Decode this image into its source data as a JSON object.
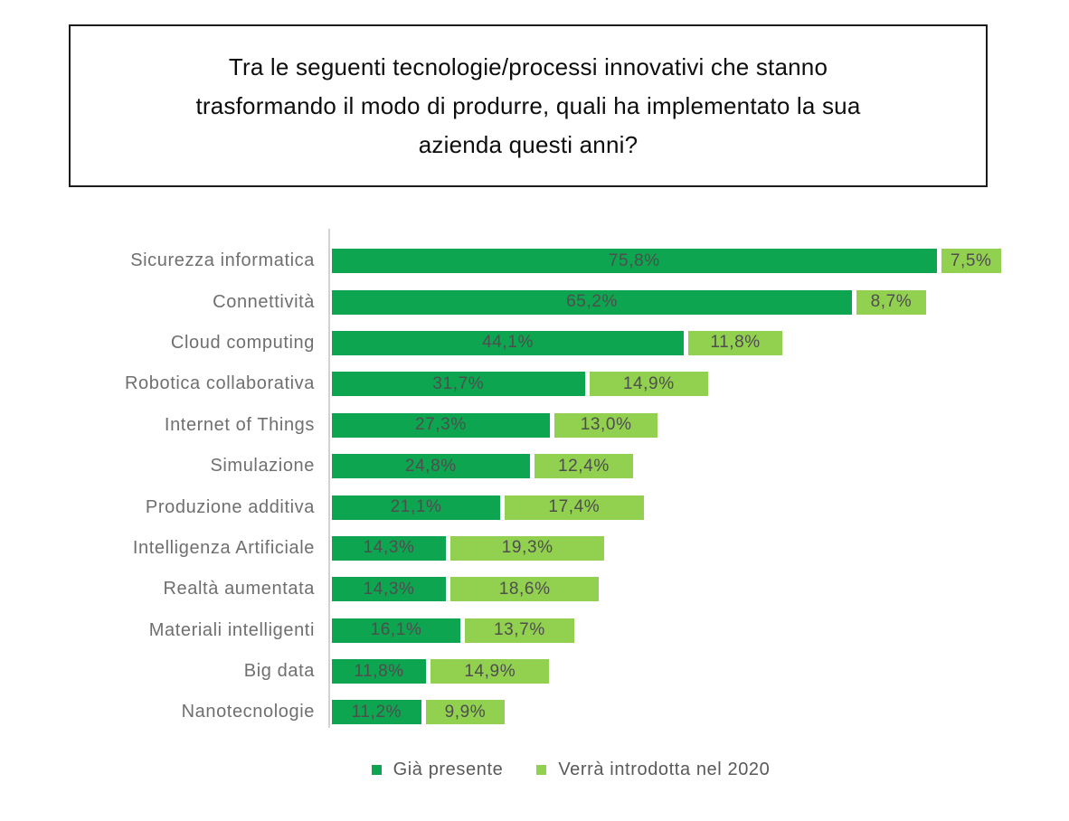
{
  "question_box": {
    "text": "Tra le seguenti tecnologie/processi innovativi che stanno trasformando il modo di produrre, quali ha implementato la sua azienda questi anni?"
  },
  "chart_data": {
    "type": "bar",
    "orientation": "horizontal",
    "stacked": true,
    "grid": false,
    "legend_position": "bottom",
    "value_suffix": "%",
    "decimal_separator": ",",
    "xlim": [
      0,
      85
    ],
    "categories": [
      "Sicurezza informatica",
      "Connettività",
      "Cloud computing",
      "Robotica collaborativa",
      "Internet of Things",
      "Simulazione",
      "Produzione additiva",
      "Intelligenza Artificiale",
      "Realtà aumentata",
      "Materiali intelligenti",
      "Big data",
      "Nanotecnologie"
    ],
    "series": [
      {
        "name": "Già presente",
        "color": "#0ea550",
        "values": [
          75.8,
          65.2,
          44.1,
          31.7,
          27.3,
          24.8,
          21.1,
          14.3,
          14.3,
          16.1,
          11.8,
          11.2
        ],
        "labels": [
          "75,8%",
          "65,2%",
          "44,1%",
          "31,7%",
          "27,3%",
          "24,8%",
          "21,1%",
          "14,3%",
          "14,3%",
          "16,1%",
          "11,8%",
          "11,2%"
        ]
      },
      {
        "name": "Verrà introdotta nel 2020",
        "color": "#92d050",
        "values": [
          7.5,
          8.7,
          11.8,
          14.9,
          13.0,
          12.4,
          17.4,
          19.3,
          18.6,
          13.7,
          14.9,
          9.9
        ],
        "labels": [
          "7,5%",
          "8,7%",
          "11,8%",
          "14,9%",
          "13,0%",
          "12,4%",
          "17,4%",
          "19,3%",
          "18,6%",
          "13,7%",
          "14,9%",
          "9,9%"
        ]
      }
    ]
  },
  "legend": {
    "items": [
      {
        "label": "Già presente",
        "color": "#0ea550"
      },
      {
        "label": "Verrà introdotta nel 2020",
        "color": "#92d050"
      }
    ]
  },
  "style": {
    "dark_green": "#0ea550",
    "light_green": "#92d050",
    "category_label_color": "#6f6f6f",
    "value_label_color": "#4e4e4e",
    "axis_line_color": "#d2d2d2"
  }
}
